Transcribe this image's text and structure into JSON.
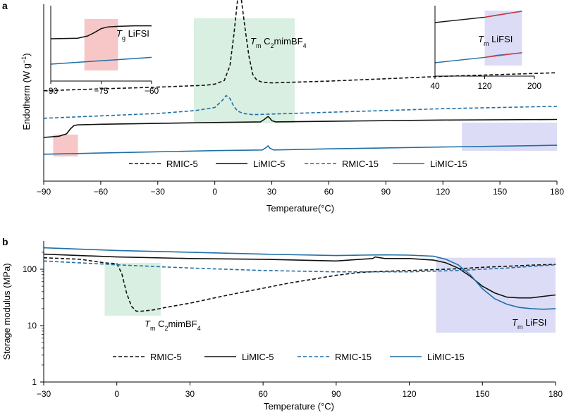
{
  "colors": {
    "black": "#111111",
    "blue": "#1f6fa6",
    "green_shade": "#d9efe1",
    "red_shade": "#f7c7c7",
    "purple_shade": "#dcdcf6"
  },
  "panel_a_letter": "a",
  "panel_b_letter": "b",
  "chart_data": [
    {
      "type": "line",
      "panel": "a",
      "xlabel": "Temperature(°C)",
      "ylabel": "Endotherm (W g−1)",
      "xlim": [
        -90,
        180
      ],
      "xticks": [
        "−90",
        "−60",
        "−30",
        "0",
        "30",
        "60",
        "90",
        "120",
        "150",
        "180"
      ],
      "annotation_tm_c2mimbf4": "Tm C2mimBF4",
      "shaded_regions": [
        {
          "x": [
            -85,
            -72
          ],
          "color": "red"
        },
        {
          "x": [
            -11,
            42
          ],
          "color": "green"
        },
        {
          "x": [
            130,
            180
          ],
          "color": "purple"
        }
      ],
      "legend": [
        "RMIC-5",
        "LiMIC-5",
        "RMIC-15",
        "LiMIC-15"
      ],
      "series": [
        {
          "name": "RMIC-5",
          "style": "dashed",
          "color": "black",
          "x": [
            -90,
            -60,
            -30,
            -5,
            0,
            5,
            8,
            10,
            12,
            13,
            14,
            16,
            18,
            20,
            22,
            25,
            30,
            60,
            90,
            120,
            150,
            180
          ],
          "y": [
            0.78,
            0.81,
            0.84,
            0.87,
            0.89,
            0.95,
            1.2,
            1.7,
            2.3,
            2.4,
            2.3,
            1.8,
            1.35,
            1.05,
            0.96,
            0.92,
            0.91,
            0.94,
            0.98,
            1.02,
            1.05,
            1.08
          ]
        },
        {
          "name": "LiMIC-5",
          "style": "solid",
          "color": "black",
          "x": [
            -90,
            -82,
            -78,
            -76,
            -74,
            -72,
            -60,
            0,
            24,
            26,
            28,
            29,
            30,
            32,
            60,
            120,
            180
          ],
          "y": [
            0.0,
            0.02,
            0.06,
            0.14,
            0.2,
            0.21,
            0.22,
            0.25,
            0.26,
            0.3,
            0.35,
            0.32,
            0.28,
            0.26,
            0.27,
            0.29,
            0.3
          ]
        },
        {
          "name": "RMIC-15",
          "style": "dashed",
          "color": "blue",
          "x": [
            -90,
            -30,
            -10,
            0,
            4,
            6,
            8,
            10,
            12,
            15,
            20,
            60,
            120,
            180
          ],
          "y": [
            0.32,
            0.4,
            0.45,
            0.5,
            0.62,
            0.7,
            0.65,
            0.52,
            0.44,
            0.4,
            0.38,
            0.42,
            0.48,
            0.52
          ]
        },
        {
          "name": "LiMIC-15",
          "style": "solid",
          "color": "blue",
          "x": [
            -90,
            -60,
            0,
            25,
            27,
            28,
            29,
            31,
            60,
            120,
            180
          ],
          "y": [
            -0.28,
            -0.26,
            -0.22,
            -0.21,
            -0.17,
            -0.14,
            -0.18,
            -0.21,
            -0.19,
            -0.16,
            -0.13
          ]
        }
      ],
      "insets": [
        {
          "name": "Tg LiFSI",
          "annotation": "Tg LiFSI",
          "xlim": [
            -90,
            -60
          ],
          "xticks": [
            "−90",
            "−75",
            "−60"
          ],
          "shaded_region": {
            "x": [
              -80,
              -70
            ],
            "color": "red"
          },
          "series": [
            {
              "name": "LiMIC-5",
              "color": "black",
              "x": [
                -90,
                -82,
                -79,
                -77,
                -75,
                -73,
                -70,
                -65,
                -60
              ],
              "y": [
                0.75,
                0.76,
                0.8,
                0.86,
                0.93,
                0.96,
                0.97,
                0.98,
                0.98
              ]
            },
            {
              "name": "LiMIC-15",
              "color": "blue",
              "x": [
                -90,
                -80,
                -70,
                -60
              ],
              "y": [
                0.3,
                0.34,
                0.38,
                0.42
              ]
            }
          ]
        },
        {
          "name": "Tm LiFSI",
          "annotation": "Tm LiFSI",
          "xlim": [
            40,
            200
          ],
          "xticks": [
            "40",
            "120",
            "200"
          ],
          "shaded_region": {
            "x": [
              120,
              180
            ],
            "color": "purple"
          },
          "series": [
            {
              "name": "LiMIC-5",
              "color": "black",
              "x": [
                40,
                80,
                120,
                140,
                160,
                180
              ],
              "y": [
                0.8,
                0.84,
                0.88,
                0.91,
                0.94,
                0.97
              ]
            },
            {
              "name": "LiMIC-5 fit",
              "color": "red",
              "x": [
                120,
                180
              ],
              "y": [
                0.88,
                0.97
              ]
            },
            {
              "name": "LiMIC-15",
              "color": "blue",
              "x": [
                40,
                80,
                120,
                140,
                160,
                180
              ],
              "y": [
                0.2,
                0.24,
                0.28,
                0.31,
                0.33,
                0.35
              ]
            },
            {
              "name": "LiMIC-15 fit",
              "color": "red",
              "x": [
                120,
                180
              ],
              "y": [
                0.28,
                0.35
              ]
            }
          ]
        }
      ]
    },
    {
      "type": "line",
      "panel": "b",
      "xlabel": "Temperature (°C)",
      "ylabel": "Storage modulus (MPa)",
      "xlim": [
        -30,
        180
      ],
      "ylim": [
        1,
        300
      ],
      "yscale": "log",
      "xticks": [
        "−30",
        "0",
        "30",
        "60",
        "90",
        "120",
        "150",
        "180"
      ],
      "yticks": [
        "1",
        "10",
        "100"
      ],
      "annotation_tm_c2mimbf4": "Tm C2mimBF4",
      "annotation_tm_lifsi": "Tm LiFSI",
      "shaded_regions": [
        {
          "x": [
            -5,
            18
          ],
          "y": [
            15,
            130
          ],
          "color": "green"
        },
        {
          "x": [
            131,
            180
          ],
          "y": [
            7.5,
            160
          ],
          "color": "purple"
        }
      ],
      "legend": [
        "RMIC-5",
        "LiMIC-5",
        "RMIC-15",
        "LiMIC-15"
      ],
      "series": [
        {
          "name": "RMIC-5",
          "style": "dashed",
          "color": "black",
          "x": [
            -30,
            -15,
            -5,
            0,
            2,
            4,
            6,
            8,
            10,
            15,
            20,
            30,
            40,
            50,
            60,
            70,
            80,
            90,
            100,
            110,
            120,
            130,
            140,
            150,
            160,
            170,
            180
          ],
          "y": [
            160,
            150,
            130,
            125,
            85,
            38,
            22,
            18,
            18,
            19,
            21,
            25,
            31,
            38,
            46,
            56,
            66,
            78,
            88,
            92,
            95,
            98,
            102,
            108,
            113,
            118,
            122
          ]
        },
        {
          "name": "LiMIC-5",
          "style": "solid",
          "color": "black",
          "x": [
            -30,
            0,
            30,
            60,
            90,
            100,
            105,
            106,
            110,
            120,
            130,
            135,
            140,
            145,
            150,
            155,
            160,
            165,
            170,
            175,
            180
          ],
          "y": [
            185,
            165,
            155,
            150,
            140,
            150,
            155,
            165,
            155,
            155,
            145,
            130,
            105,
            75,
            50,
            38,
            32,
            31,
            31,
            33,
            35
          ]
        },
        {
          "name": "RMIC-15",
          "style": "dashed",
          "color": "blue",
          "x": [
            -30,
            0,
            30,
            60,
            90,
            120,
            140,
            160,
            180
          ],
          "y": [
            140,
            120,
            105,
            95,
            90,
            90,
            95,
            105,
            120
          ]
        },
        {
          "name": "LiMIC-15",
          "style": "solid",
          "color": "blue",
          "x": [
            -30,
            0,
            30,
            60,
            90,
            100,
            110,
            120,
            130,
            135,
            140,
            145,
            150,
            155,
            160,
            165,
            170,
            175,
            180
          ],
          "y": [
            240,
            215,
            200,
            185,
            175,
            178,
            180,
            178,
            170,
            150,
            120,
            80,
            45,
            30,
            24,
            21,
            20,
            19.5,
            20
          ]
        }
      ]
    }
  ]
}
